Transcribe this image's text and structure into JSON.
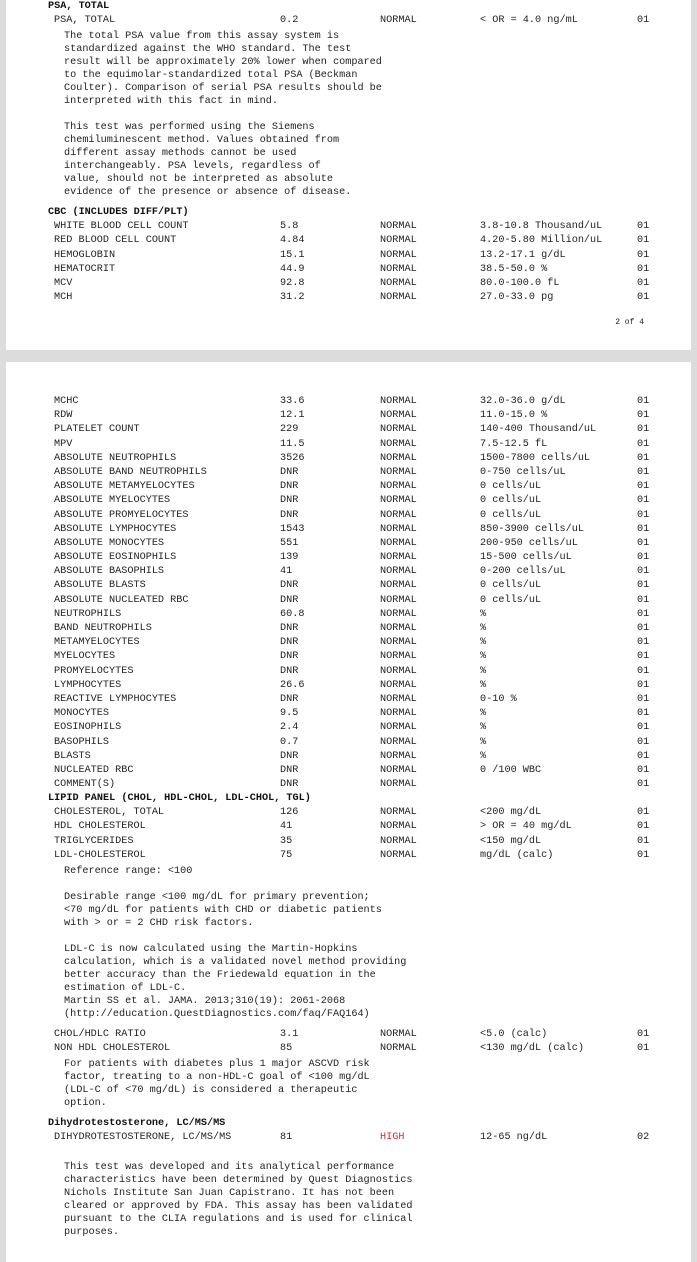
{
  "colors": {
    "high_flag": "#e0252a"
  },
  "pages": [
    {
      "footer": "2 of 4",
      "blocks": [
        {
          "type": "header",
          "text": "PSA, TOTAL"
        },
        {
          "type": "row",
          "name": "PSA, TOTAL",
          "value": "0.2",
          "flag": "NORMAL",
          "range": "< OR = 4.0 ng/mL",
          "lab": "01"
        },
        {
          "type": "note",
          "lines": [
            "The total PSA value from this assay system is",
            "standardized against the WHO standard. The test",
            "result will be approximately 20% lower when compared",
            "to the equimolar-standardized total PSA (Beckman",
            "Coulter). Comparison of serial PSA results should be",
            "interpreted with this fact in mind.",
            "",
            "This test was performed using the Siemens",
            "chemiluminescent method. Values obtained from",
            "different assay methods cannot be used",
            "interchangeably. PSA levels, regardless of",
            "value, should not be interpreted as absolute",
            "evidence of the presence or absence of disease."
          ]
        },
        {
          "type": "header",
          "text": "CBC (INCLUDES DIFF/PLT)"
        },
        {
          "type": "row",
          "name": "WHITE BLOOD CELL COUNT",
          "value": "5.8",
          "flag": "NORMAL",
          "range": "3.8-10.8 Thousand/uL",
          "lab": "01"
        },
        {
          "type": "row",
          "name": "RED BLOOD CELL COUNT",
          "value": "4.84",
          "flag": "NORMAL",
          "range": "4.20-5.80 Million/uL",
          "lab": "01"
        },
        {
          "type": "row",
          "name": "HEMOGLOBIN",
          "value": "15.1",
          "flag": "NORMAL",
          "range": "13.2-17.1 g/dL",
          "lab": "01"
        },
        {
          "type": "row",
          "name": "HEMATOCRIT",
          "value": "44.9",
          "flag": "NORMAL",
          "range": "38.5-50.0 %",
          "lab": "01"
        },
        {
          "type": "row",
          "name": "MCV",
          "value": "92.8",
          "flag": "NORMAL",
          "range": "80.0-100.0 fL",
          "lab": "01"
        },
        {
          "type": "row",
          "name": "MCH",
          "value": "31.2",
          "flag": "NORMAL",
          "range": "27.0-33.0 pg",
          "lab": "01"
        }
      ]
    },
    {
      "blocks": [
        {
          "type": "row",
          "name": "MCHC",
          "value": "33.6",
          "flag": "NORMAL",
          "range": "32.0-36.0 g/dL",
          "lab": "01"
        },
        {
          "type": "row",
          "name": "RDW",
          "value": "12.1",
          "flag": "NORMAL",
          "range": "11.0-15.0 %",
          "lab": "01"
        },
        {
          "type": "row",
          "name": "PLATELET COUNT",
          "value": "229",
          "flag": "NORMAL",
          "range": "140-400 Thousand/uL",
          "lab": "01"
        },
        {
          "type": "row",
          "name": "MPV",
          "value": "11.5",
          "flag": "NORMAL",
          "range": "7.5-12.5 fL",
          "lab": "01"
        },
        {
          "type": "row",
          "name": "ABSOLUTE NEUTROPHILS",
          "value": "3526",
          "flag": "NORMAL",
          "range": "1500-7800 cells/uL",
          "lab": "01"
        },
        {
          "type": "row",
          "name": "ABSOLUTE BAND NEUTROPHILS",
          "value": "DNR",
          "flag": "NORMAL",
          "range": "0-750 cells/uL",
          "lab": "01"
        },
        {
          "type": "row",
          "name": "ABSOLUTE METAMYELOCYTES",
          "value": "DNR",
          "flag": "NORMAL",
          "range": "0 cells/uL",
          "lab": "01"
        },
        {
          "type": "row",
          "name": "ABSOLUTE MYELOCYTES",
          "value": "DNR",
          "flag": "NORMAL",
          "range": "0 cells/uL",
          "lab": "01"
        },
        {
          "type": "row",
          "name": "ABSOLUTE PROMYELOCYTES",
          "value": "DNR",
          "flag": "NORMAL",
          "range": "0 cells/uL",
          "lab": "01"
        },
        {
          "type": "row",
          "name": "ABSOLUTE LYMPHOCYTES",
          "value": "1543",
          "flag": "NORMAL",
          "range": "850-3900 cells/uL",
          "lab": "01"
        },
        {
          "type": "row",
          "name": "ABSOLUTE MONOCYTES",
          "value": "551",
          "flag": "NORMAL",
          "range": "200-950 cells/uL",
          "lab": "01"
        },
        {
          "type": "row",
          "name": "ABSOLUTE EOSINOPHILS",
          "value": "139",
          "flag": "NORMAL",
          "range": "15-500 cells/uL",
          "lab": "01"
        },
        {
          "type": "row",
          "name": "ABSOLUTE BASOPHILS",
          "value": "41",
          "flag": "NORMAL",
          "range": "0-200 cells/uL",
          "lab": "01"
        },
        {
          "type": "row",
          "name": "ABSOLUTE BLASTS",
          "value": "DNR",
          "flag": "NORMAL",
          "range": "0 cells/uL",
          "lab": "01"
        },
        {
          "type": "row",
          "name": "ABSOLUTE NUCLEATED RBC",
          "value": "DNR",
          "flag": "NORMAL",
          "range": "0 cells/uL",
          "lab": "01"
        },
        {
          "type": "row",
          "name": "NEUTROPHILS",
          "value": "60.8",
          "flag": "NORMAL",
          "range": "%",
          "lab": "01"
        },
        {
          "type": "row",
          "name": "BAND NEUTROPHILS",
          "value": "DNR",
          "flag": "NORMAL",
          "range": "%",
          "lab": "01"
        },
        {
          "type": "row",
          "name": "METAMYELOCYTES",
          "value": "DNR",
          "flag": "NORMAL",
          "range": "%",
          "lab": "01"
        },
        {
          "type": "row",
          "name": "MYELOCYTES",
          "value": "DNR",
          "flag": "NORMAL",
          "range": "%",
          "lab": "01"
        },
        {
          "type": "row",
          "name": "PROMYELOCYTES",
          "value": "DNR",
          "flag": "NORMAL",
          "range": "%",
          "lab": "01"
        },
        {
          "type": "row",
          "name": "LYMPHOCYTES",
          "value": "26.6",
          "flag": "NORMAL",
          "range": "%",
          "lab": "01"
        },
        {
          "type": "row",
          "name": "REACTIVE LYMPHOCYTES",
          "value": "DNR",
          "flag": "NORMAL",
          "range": "0-10 %",
          "lab": "01"
        },
        {
          "type": "row",
          "name": "MONOCYTES",
          "value": "9.5",
          "flag": "NORMAL",
          "range": "%",
          "lab": "01"
        },
        {
          "type": "row",
          "name": "EOSINOPHILS",
          "value": "2.4",
          "flag": "NORMAL",
          "range": "%",
          "lab": "01"
        },
        {
          "type": "row",
          "name": "BASOPHILS",
          "value": "0.7",
          "flag": "NORMAL",
          "range": "%",
          "lab": "01"
        },
        {
          "type": "row",
          "name": "BLASTS",
          "value": "DNR",
          "flag": "NORMAL",
          "range": "%",
          "lab": "01"
        },
        {
          "type": "row",
          "name": "NUCLEATED RBC",
          "value": "DNR",
          "flag": "NORMAL",
          "range": "0 /100 WBC",
          "lab": "01"
        },
        {
          "type": "row",
          "name": "COMMENT(S)",
          "value": "DNR",
          "flag": "NORMAL",
          "range": "",
          "lab": "01"
        },
        {
          "type": "header",
          "text": "LIPID PANEL (CHOL, HDL-CHOL, LDL-CHOL, TGL)"
        },
        {
          "type": "row",
          "name": "CHOLESTEROL, TOTAL",
          "value": "126",
          "flag": "NORMAL",
          "range": "<200 mg/dL",
          "lab": "01"
        },
        {
          "type": "row",
          "name": "HDL CHOLESTEROL",
          "value": "41",
          "flag": "NORMAL",
          "range": "> OR = 40 mg/dL",
          "lab": "01"
        },
        {
          "type": "row",
          "name": "TRIGLYCERIDES",
          "value": "35",
          "flag": "NORMAL",
          "range": "<150 mg/dL",
          "lab": "01"
        },
        {
          "type": "row",
          "name": "LDL-CHOLESTEROL",
          "value": "75",
          "flag": "NORMAL",
          "range": "mg/dL (calc)",
          "lab": "01"
        },
        {
          "type": "note",
          "lines": [
            "Reference range: <100",
            "",
            "Desirable range <100 mg/dL for primary prevention;",
            "<70 mg/dL for patients with CHD or diabetic patients",
            "with > or = 2 CHD risk factors.",
            "",
            "LDL-C is now calculated using the Martin-Hopkins",
            "calculation, which is a validated novel method providing",
            "better accuracy than the Friedewald equation in the",
            "estimation of LDL-C.",
            "Martin SS et al. JAMA. 2013;310(19): 2061-2068",
            "(http://education.QuestDiagnostics.com/faq/FAQ164)"
          ]
        },
        {
          "type": "row",
          "name": "CHOL/HDLC RATIO",
          "value": "3.1",
          "flag": "NORMAL",
          "range": "<5.0 (calc)",
          "lab": "01"
        },
        {
          "type": "row",
          "name": "NON HDL CHOLESTEROL",
          "value": "85",
          "flag": "NORMAL",
          "range": "<130 mg/dL (calc)",
          "lab": "01"
        },
        {
          "type": "note",
          "lines": [
            "For patients with diabetes plus 1 major ASCVD risk",
            "factor, treating to a non-HDL-C goal of <100 mg/dL",
            "(LDL-C of <70 mg/dL) is considered a therapeutic",
            "option."
          ]
        },
        {
          "type": "header",
          "text": "Dihydrotestosterone, LC/MS/MS"
        },
        {
          "type": "row",
          "name": "DIHYDROTESTOSTERONE, LC/MS/MS",
          "value": "81",
          "flag": "HIGH",
          "range": "12-65 ng/dL",
          "lab": "02"
        },
        {
          "type": "note",
          "lines": [
            "",
            "This test was developed and its analytical performance",
            "characteristics have been determined by Quest Diagnostics",
            "Nichols Institute San Juan Capistrano. It has not been",
            "cleared or approved by FDA. This assay has been validated",
            "pursuant to the CLIA regulations and is used for clinical",
            "purposes."
          ]
        }
      ]
    }
  ]
}
